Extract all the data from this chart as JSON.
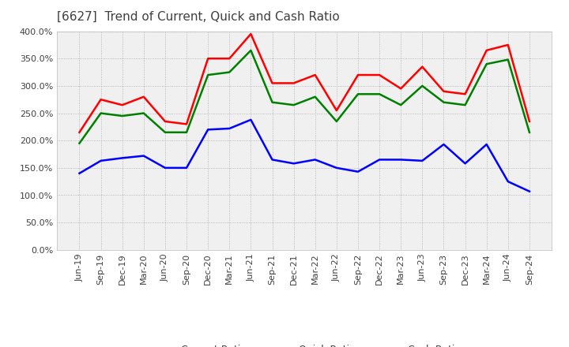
{
  "title": "[6627]  Trend of Current, Quick and Cash Ratio",
  "x_labels": [
    "Jun-19",
    "Sep-19",
    "Dec-19",
    "Mar-20",
    "Jun-20",
    "Sep-20",
    "Dec-20",
    "Mar-21",
    "Jun-21",
    "Sep-21",
    "Dec-21",
    "Mar-22",
    "Jun-22",
    "Sep-22",
    "Dec-22",
    "Mar-23",
    "Jun-23",
    "Sep-23",
    "Dec-23",
    "Mar-24",
    "Jun-24",
    "Sep-24"
  ],
  "current_ratio": [
    215,
    275,
    265,
    280,
    235,
    230,
    350,
    350,
    395,
    305,
    305,
    320,
    255,
    320,
    320,
    295,
    335,
    290,
    285,
    365,
    375,
    235
  ],
  "quick_ratio": [
    195,
    250,
    245,
    250,
    215,
    215,
    320,
    325,
    365,
    270,
    265,
    280,
    235,
    285,
    285,
    265,
    300,
    270,
    265,
    340,
    348,
    215
  ],
  "cash_ratio": [
    140,
    163,
    168,
    172,
    150,
    150,
    220,
    222,
    238,
    165,
    158,
    165,
    150,
    143,
    165,
    165,
    163,
    193,
    158,
    193,
    125,
    107
  ],
  "current_color": "#FF0000",
  "quick_color": "#008000",
  "cash_color": "#0000FF",
  "ylim": [
    0,
    400
  ],
  "yticks": [
    0,
    50,
    100,
    150,
    200,
    250,
    300,
    350,
    400
  ],
  "background_color": "#FFFFFF",
  "plot_bg_color": "#F0F0F0",
  "grid_color": "#AAAAAA",
  "title_color": "#404040",
  "legend_labels": [
    "Current Ratio",
    "Quick Ratio",
    "Cash Ratio"
  ]
}
